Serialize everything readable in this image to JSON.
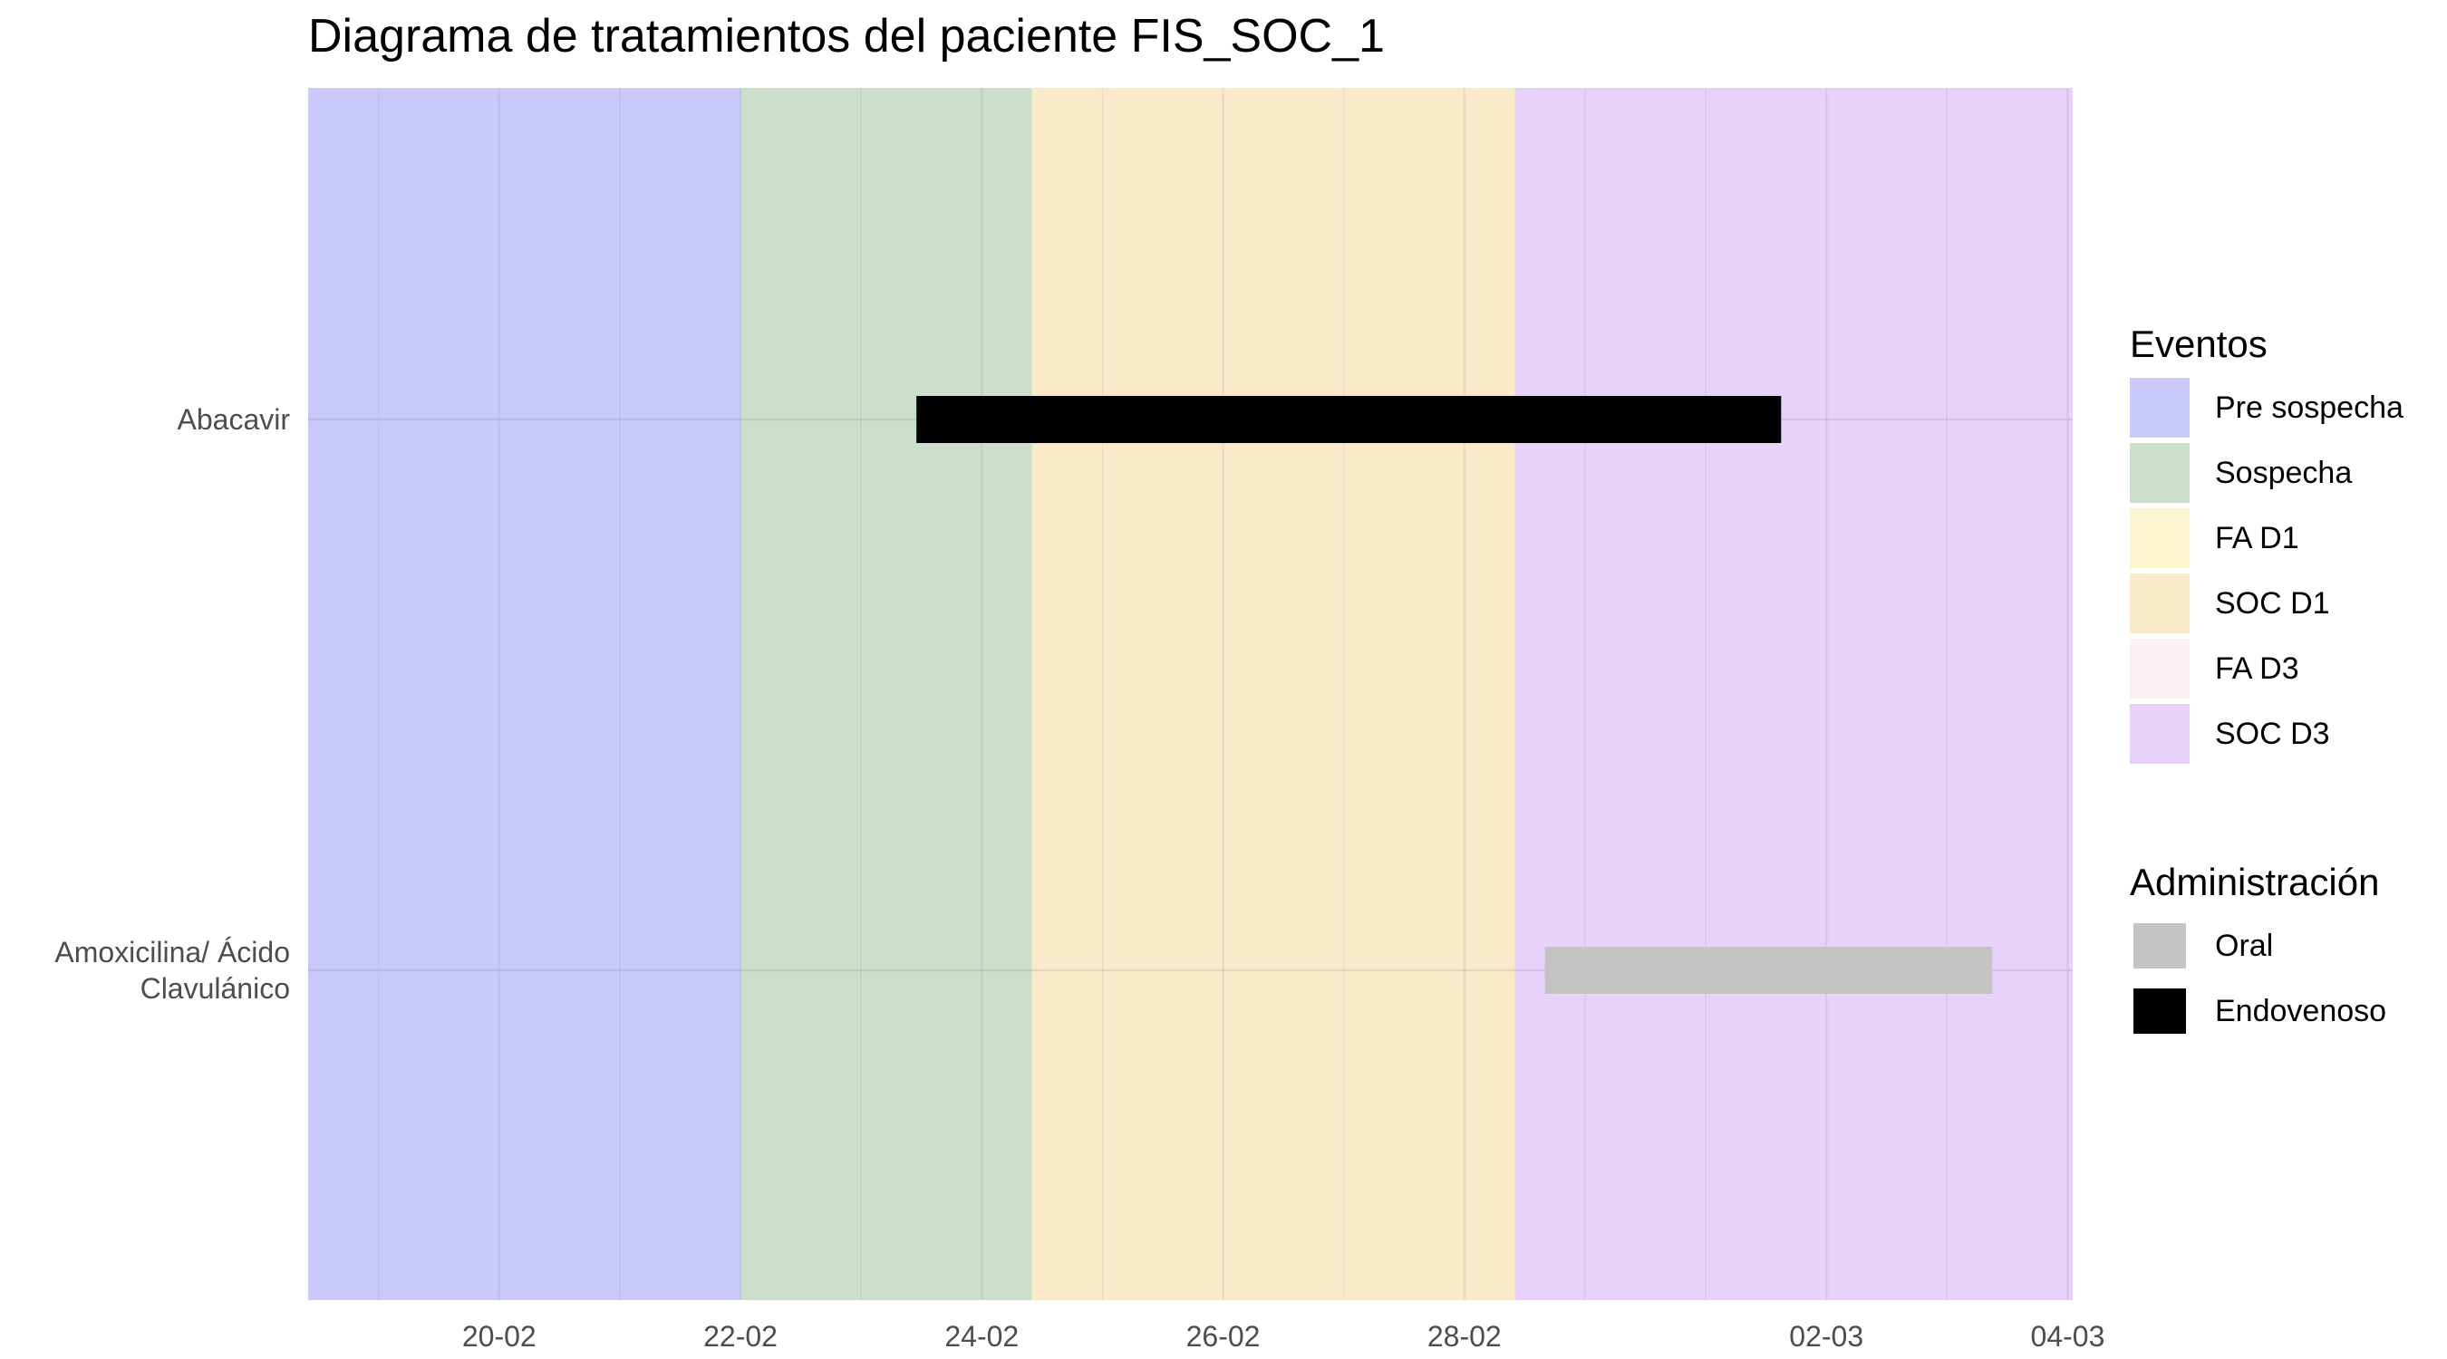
{
  "chart_data": {
    "type": "bar",
    "subtype": "gantt",
    "title": "Diagrama de tratamientos del paciente FIS_SOC_1",
    "xlabel": "",
    "ylabel": "",
    "x_range": [
      "2024-02-18T10:00",
      "2024-03-04T01:00"
    ],
    "x_ticks": [
      {
        "date": "2024-02-20",
        "label": "20-02"
      },
      {
        "date": "2024-02-22",
        "label": "22-02"
      },
      {
        "date": "2024-02-24",
        "label": "24-02"
      },
      {
        "date": "2024-02-26",
        "label": "26-02"
      },
      {
        "date": "2024-02-28",
        "label": "28-02"
      },
      {
        "date": "2024-03-02",
        "label": "02-03"
      },
      {
        "date": "2024-03-04",
        "label": "04-03"
      }
    ],
    "categories": [
      "Abacavir",
      "Amoxicilina/ Ácido\nClavulánico"
    ],
    "phases": [
      {
        "name": "Pre sospecha",
        "start": "2024-02-18T10:00",
        "end": "2024-02-22T00:00",
        "color": "#c9c9fa"
      },
      {
        "name": "Sospecha",
        "start": "2024-02-22T00:00",
        "end": "2024-02-24T10:00",
        "color": "#cbdfcb"
      },
      {
        "name": "SOC D1",
        "start": "2024-02-24T10:00",
        "end": "2024-02-28T10:00",
        "color": "#fbeaca"
      },
      {
        "name": "SOC D3",
        "start": "2024-02-28T10:00",
        "end": "2024-03-04T01:00",
        "color": "#e8d2fa"
      }
    ],
    "series": [
      {
        "category": "Abacavir",
        "type": "Endovenoso",
        "start": "2024-02-23T11:00",
        "end": "2024-03-01T15:00",
        "color": "#000000"
      },
      {
        "category": "Amoxicilina/ Ácido\nClavulánico",
        "type": "Oral",
        "start": "2024-02-28T16:00",
        "end": "2024-03-03T09:00",
        "color": "#c4c4c4"
      }
    ],
    "legends": [
      {
        "title": "Eventos",
        "items": [
          {
            "label": "Pre sospecha",
            "color": "#c9c9fa"
          },
          {
            "label": "Sospecha",
            "color": "#cbdfcb"
          },
          {
            "label": "FA D1",
            "color": "#fdf5cd"
          },
          {
            "label": "SOC D1",
            "color": "#fbeaca"
          },
          {
            "label": "FA D3",
            "color": "#fbf0f2"
          },
          {
            "label": "SOC D3",
            "color": "#e8d2fa"
          }
        ]
      },
      {
        "title": "Administración",
        "items": [
          {
            "label": "Oral",
            "color": "#c4c4c4"
          },
          {
            "label": "Endovenoso",
            "color": "#000000"
          }
        ]
      }
    ],
    "grid": true,
    "legend_position": "right"
  }
}
